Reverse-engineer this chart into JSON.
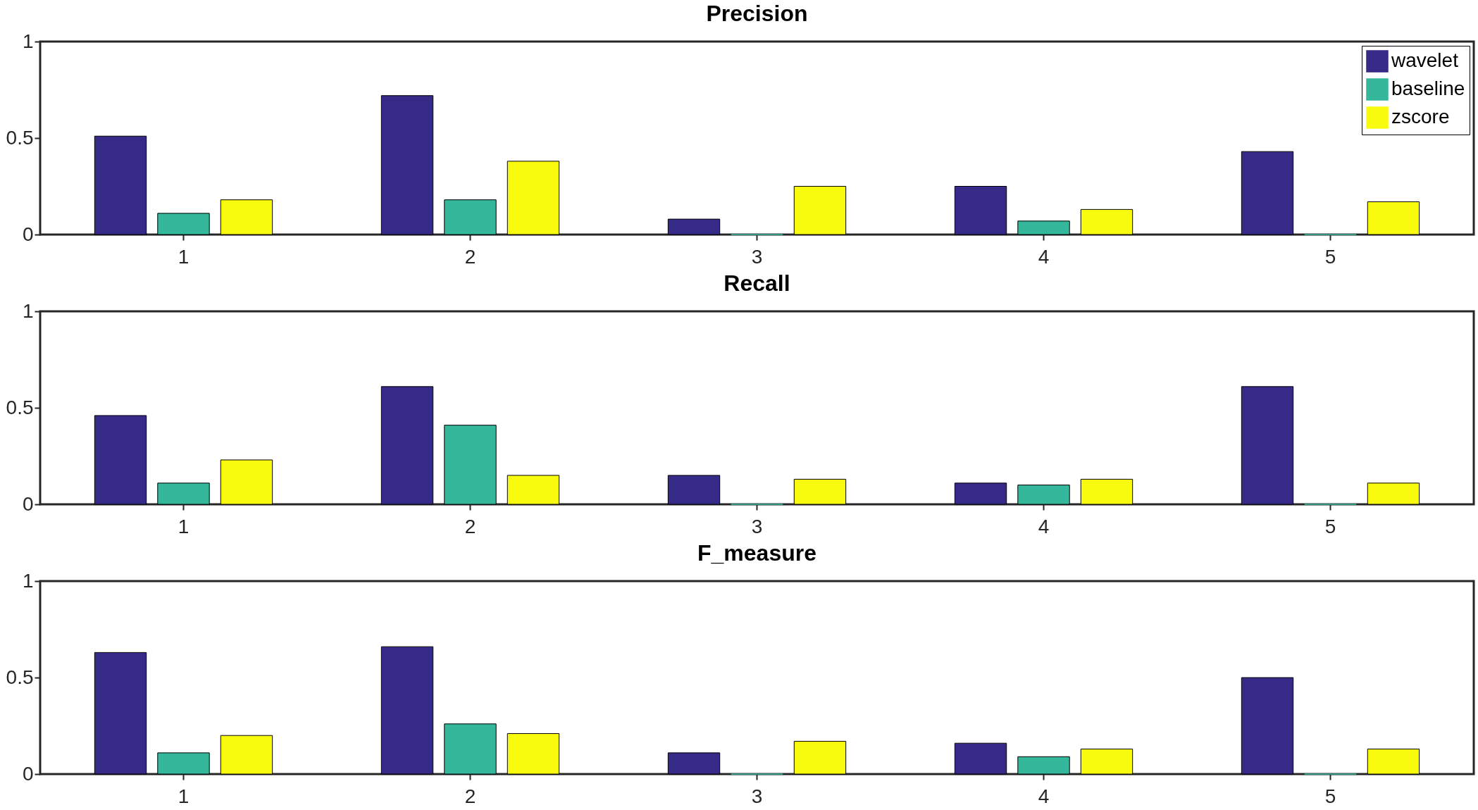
{
  "chart_data": [
    {
      "type": "bar",
      "title": "Precision",
      "categories": [
        "1",
        "2",
        "3",
        "4",
        "5"
      ],
      "series": [
        {
          "name": "wavelet",
          "color": "#352a87",
          "values": [
            0.51,
            0.72,
            0.08,
            0.25,
            0.43
          ]
        },
        {
          "name": "baseline",
          "color": "#35b79b",
          "values": [
            0.11,
            0.18,
            0,
            0.07,
            0
          ]
        },
        {
          "name": "zscore",
          "color": "#f9fb0e",
          "values": [
            0.18,
            0.38,
            0.25,
            0.13,
            0.17
          ]
        }
      ],
      "ylim": [
        0,
        1
      ],
      "yticks": [
        0,
        0.5,
        1
      ],
      "grid": false,
      "legend": "top right"
    },
    {
      "type": "bar",
      "title": "Recall",
      "categories": [
        "1",
        "2",
        "3",
        "4",
        "5"
      ],
      "series": [
        {
          "color": "#352a87",
          "values": [
            0.46,
            0.61,
            0.15,
            0.11,
            0.61
          ]
        },
        {
          "color": "#35b79b",
          "values": [
            0.11,
            0.41,
            0,
            0.1,
            0
          ]
        },
        {
          "color": "#f9fb0e",
          "values": [
            0.23,
            0.15,
            0.13,
            0.13,
            0.11
          ]
        }
      ],
      "ylim": [
        0,
        1
      ],
      "yticks": [
        0,
        0.5,
        1
      ],
      "grid": false,
      "legend": false
    },
    {
      "type": "bar",
      "title": "F_measure",
      "categories": [
        "1",
        "2",
        "3",
        "4",
        "5"
      ],
      "series": [
        {
          "color": "#352a87",
          "values": [
            0.63,
            0.66,
            0.11,
            0.16,
            0.5
          ]
        },
        {
          "color": "#35b79b",
          "values": [
            0.11,
            0.26,
            0,
            0.09,
            0
          ]
        },
        {
          "color": "#f9fb0e",
          "values": [
            0.2,
            0.21,
            0.17,
            0.13,
            0.13
          ]
        }
      ],
      "ylim": [
        0,
        1
      ],
      "yticks": [
        0,
        0.5,
        1
      ],
      "grid": false,
      "legend": false
    }
  ]
}
